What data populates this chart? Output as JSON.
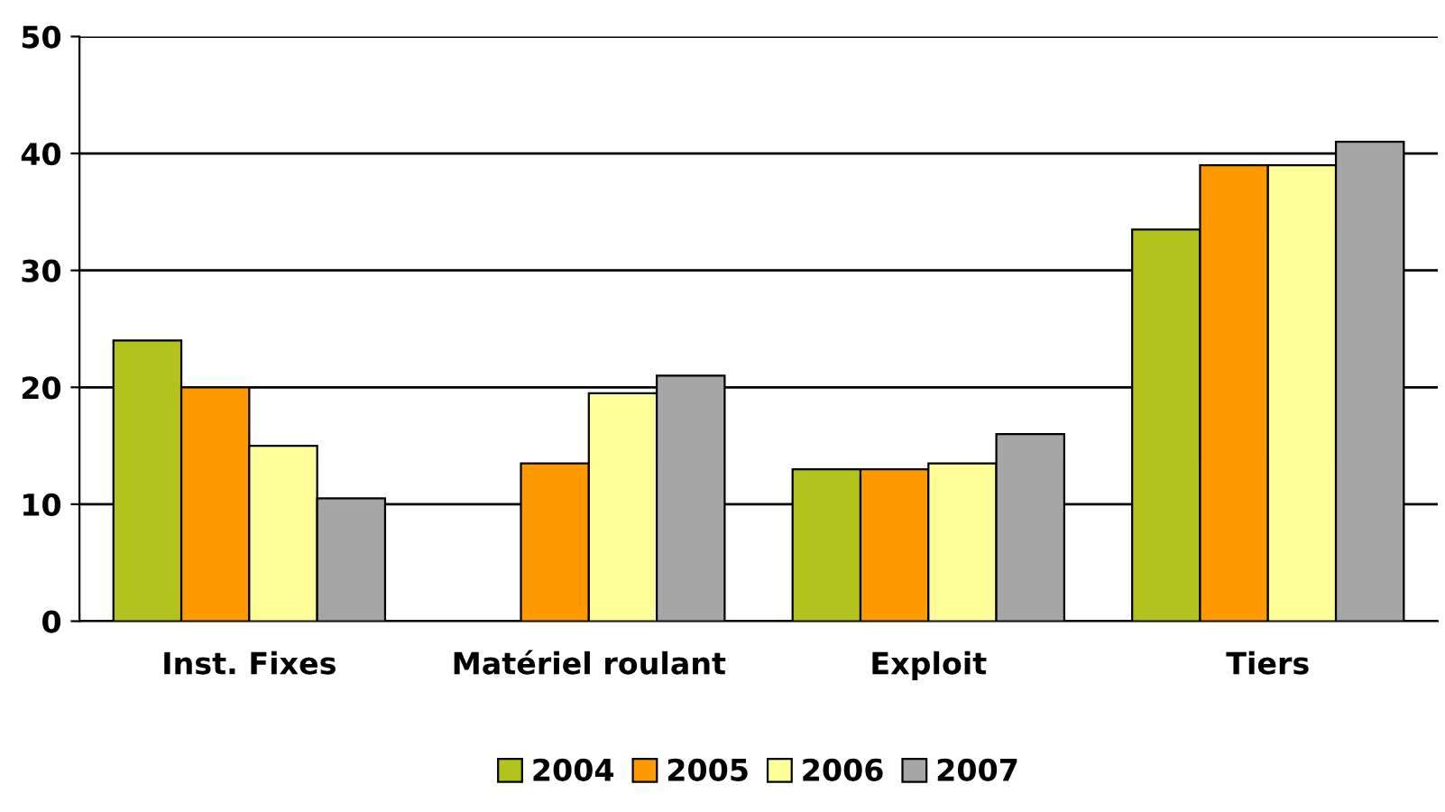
{
  "chart_data": {
    "type": "bar",
    "categories": [
      "Inst. Fixes",
      "Matériel roulant",
      "Exploit",
      "Tiers"
    ],
    "series": [
      {
        "name": "2004",
        "color": "#b3c21c",
        "values": [
          24,
          null,
          13,
          33.5
        ]
      },
      {
        "name": "2005",
        "color": "#ff9900",
        "values": [
          20,
          13.5,
          13,
          39
        ]
      },
      {
        "name": "2006",
        "color": "#ffff99",
        "values": [
          15,
          19.5,
          13.5,
          39
        ]
      },
      {
        "name": "2007",
        "color": "#a6a6a6",
        "values": [
          10.5,
          21,
          16,
          41
        ]
      }
    ],
    "ylim": [
      0,
      50
    ],
    "yticks": [
      0,
      10,
      20,
      30,
      40,
      50
    ],
    "grid": "y",
    "legend": "bottom"
  }
}
